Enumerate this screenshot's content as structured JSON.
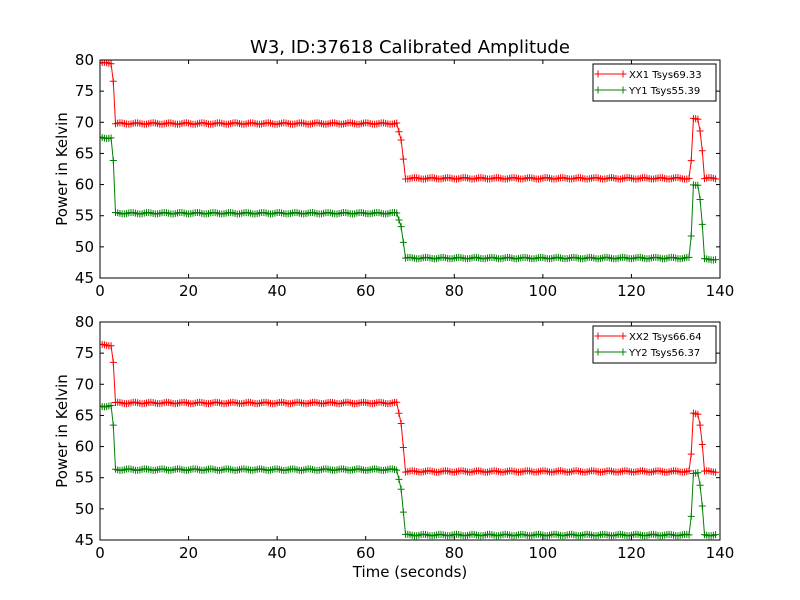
{
  "figure": {
    "title": "W3, ID:37618 Calibrated Amplitude"
  },
  "chart_data": [
    {
      "type": "line",
      "title": "W3, ID:37618 Calibrated Amplitude",
      "xlabel": "",
      "ylabel": "Power in Kelvin",
      "xlim": [
        0,
        140
      ],
      "ylim": [
        45,
        80
      ],
      "x_ticks": [
        "0",
        "20",
        "40",
        "60",
        "80",
        "100",
        "120",
        "140"
      ],
      "y_ticks": [
        "45",
        "50",
        "55",
        "60",
        "65",
        "70",
        "75",
        "80"
      ],
      "grid": false,
      "legend": "top-right",
      "series": [
        {
          "name": "XX1 Tsys69.33",
          "color": "#ff0000",
          "segments": [
            {
              "x_start": 0.0,
              "x_end": 2.5,
              "value": 79.5
            },
            {
              "x_start": 3.5,
              "x_end": 67.0,
              "value": 69.8
            },
            {
              "x_start": 69.0,
              "x_end": 133.0,
              "value": 61.0
            },
            {
              "x_start": 134.0,
              "x_end": 135.0,
              "value": 70.5
            },
            {
              "x_start": 136.5,
              "x_end": 139.0,
              "value": 61.0
            }
          ]
        },
        {
          "name": "YY1 Tsys55.39",
          "color": "#008000",
          "segments": [
            {
              "x_start": 0.0,
              "x_end": 2.5,
              "value": 67.5
            },
            {
              "x_start": 3.5,
              "x_end": 67.0,
              "value": 55.4
            },
            {
              "x_start": 69.0,
              "x_end": 133.0,
              "value": 48.2
            },
            {
              "x_start": 134.0,
              "x_end": 135.0,
              "value": 60.0
            },
            {
              "x_start": 136.5,
              "x_end": 139.0,
              "value": 48.0
            }
          ]
        }
      ]
    },
    {
      "type": "line",
      "title": "",
      "xlabel": "Time (seconds)",
      "ylabel": "Power in Kelvin",
      "xlim": [
        0,
        140
      ],
      "ylim": [
        45,
        80
      ],
      "x_ticks": [
        "0",
        "20",
        "40",
        "60",
        "80",
        "100",
        "120",
        "140"
      ],
      "y_ticks": [
        "45",
        "50",
        "55",
        "60",
        "65",
        "70",
        "75",
        "80"
      ],
      "grid": false,
      "legend": "top-right",
      "series": [
        {
          "name": "XX2 Tsys66.64",
          "color": "#ff0000",
          "segments": [
            {
              "x_start": 0.0,
              "x_end": 2.5,
              "value": 76.3
            },
            {
              "x_start": 3.5,
              "x_end": 67.0,
              "value": 67.0
            },
            {
              "x_start": 69.0,
              "x_end": 133.0,
              "value": 56.0
            },
            {
              "x_start": 134.0,
              "x_end": 135.0,
              "value": 65.3
            },
            {
              "x_start": 136.5,
              "x_end": 139.0,
              "value": 56.0
            }
          ]
        },
        {
          "name": "YY2 Tsys56.37",
          "color": "#008000",
          "segments": [
            {
              "x_start": 0.0,
              "x_end": 2.5,
              "value": 66.5
            },
            {
              "x_start": 3.5,
              "x_end": 67.0,
              "value": 56.3
            },
            {
              "x_start": 69.0,
              "x_end": 133.0,
              "value": 45.8
            },
            {
              "x_start": 134.0,
              "x_end": 135.0,
              "value": 55.8
            },
            {
              "x_start": 136.5,
              "x_end": 139.0,
              "value": 45.8
            }
          ]
        }
      ]
    }
  ]
}
